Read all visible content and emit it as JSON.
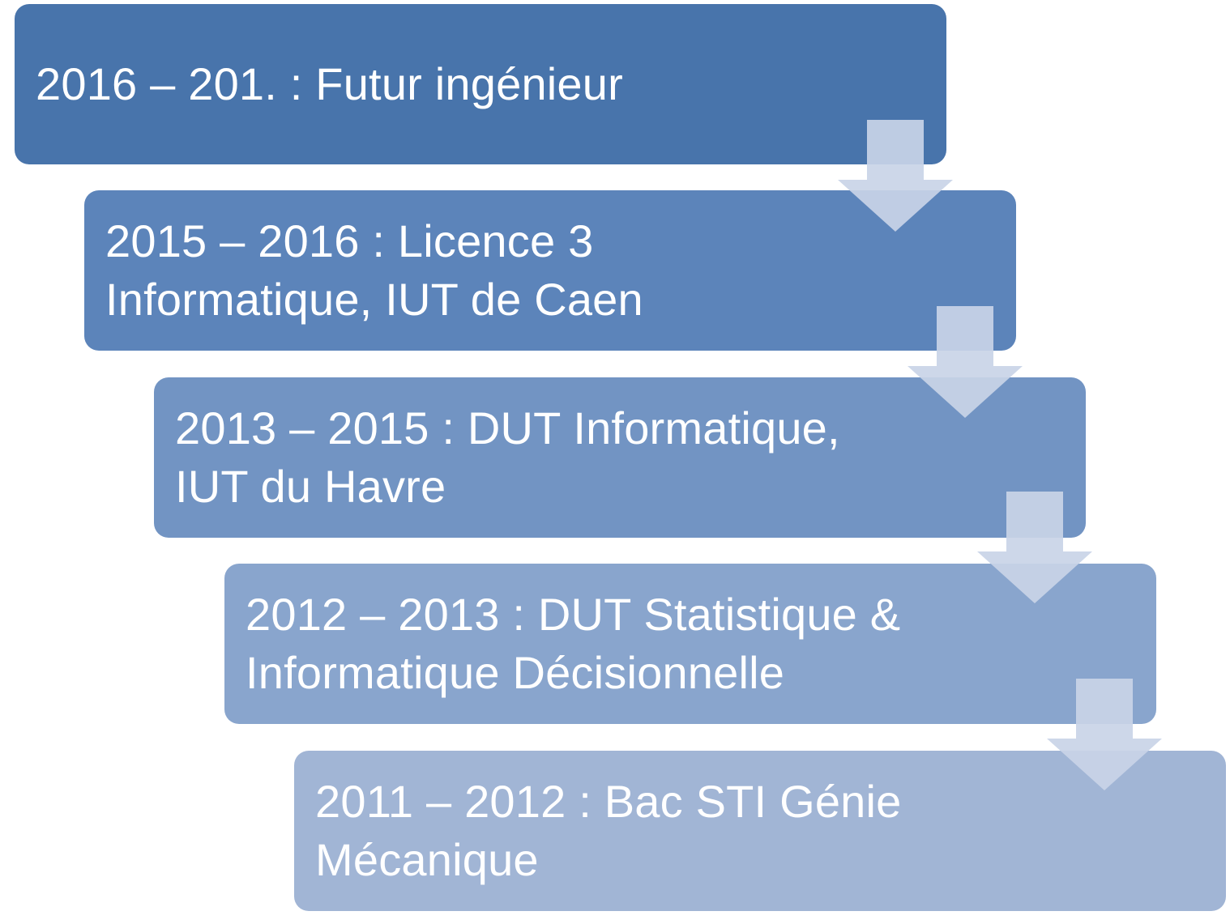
{
  "steps": [
    {
      "label": "2016 – 201. : Futur ingénieur",
      "color": "#4874ab"
    },
    {
      "label": "2015 – 2016 : Licence 3 Informatique, IUT de Caen",
      "color": "#5c84ba"
    },
    {
      "label": "2013 – 2015 : DUT Informatique, IUT du Havre",
      "color": "#7294c3"
    },
    {
      "label": "2012 – 2013 : DUT Statistique & Informatique Décisionnelle",
      "color": "#89a5cd"
    },
    {
      "label": "2011 – 2012 : Bac STI Génie Mécanique",
      "color": "#a1b5d5"
    }
  ],
  "connectors": [
    {
      "icon": "down-arrow-icon",
      "color": "#c9d4e7"
    },
    {
      "icon": "down-arrow-icon",
      "color": "#c9d4e7"
    },
    {
      "icon": "down-arrow-icon",
      "color": "#c9d4e7"
    },
    {
      "icon": "down-arrow-icon",
      "color": "#c9d4e7"
    }
  ]
}
